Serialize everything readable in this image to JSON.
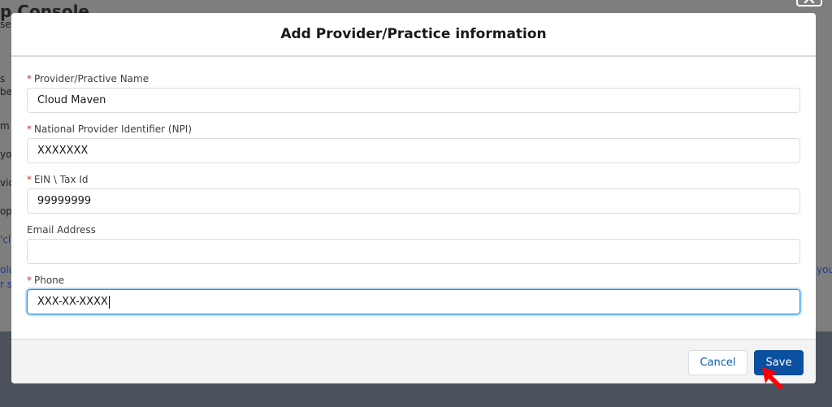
{
  "background": {
    "title_fragment": "p Console",
    "fragments": [
      "se",
      "s",
      "bel",
      "m",
      "yo",
      "vic",
      "op",
      "'cli",
      "olu",
      "r se"
    ],
    "right_fragment": "you"
  },
  "modal": {
    "title": "Add Provider/Practice information",
    "fields": [
      {
        "label": "Provider/Practive Name",
        "required": true,
        "value": "Cloud Maven"
      },
      {
        "label": "National Provider Identifier (NPI)",
        "required": true,
        "value": "XXXXXXX"
      },
      {
        "label": "EIN \\ Tax Id",
        "required": true,
        "value": "99999999"
      },
      {
        "label": "Email Address",
        "required": false,
        "value": ""
      },
      {
        "label": "Phone",
        "required": true,
        "value": "XXX-XX-XXXX",
        "focused": true
      }
    ],
    "required_marker": "*",
    "cancel_label": "Cancel",
    "save_label": "Save"
  },
  "colors": {
    "brand": "#0b4fa0",
    "required": "#c23934",
    "focus": "#1b96ff",
    "cursor": "#ff0000"
  }
}
